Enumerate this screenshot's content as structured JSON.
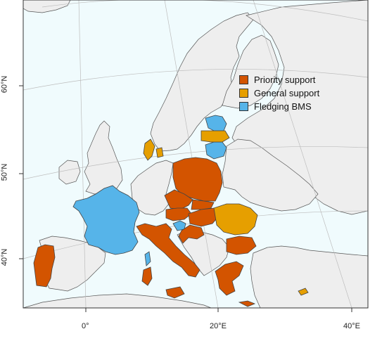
{
  "map": {
    "colors": {
      "sea": "#f0fbfd",
      "land": "#eeeeee",
      "border": "#555555",
      "graticule": "#bdbdbd",
      "frame": "#333333"
    },
    "legend": [
      {
        "label": "Priority support",
        "color": "#d35400"
      },
      {
        "label": "General support",
        "color": "#e69f00"
      },
      {
        "label": "Fledging BMS",
        "color": "#56b4e9"
      }
    ],
    "axes": {
      "x_ticks": [
        "0°",
        "20°E",
        "40°E"
      ],
      "y_ticks": [
        "40°N",
        "50°N",
        "60°N"
      ]
    },
    "countries": [
      {
        "name": "France",
        "category": "Fledging BMS"
      },
      {
        "name": "Portugal",
        "category": "Priority support"
      },
      {
        "name": "Italy",
        "category": "Priority support"
      },
      {
        "name": "Poland",
        "category": "Priority support"
      },
      {
        "name": "Czechia",
        "category": "Priority support"
      },
      {
        "name": "Austria",
        "category": "Priority support"
      },
      {
        "name": "Slovakia",
        "category": "Priority support"
      },
      {
        "name": "Hungary",
        "category": "Priority support"
      },
      {
        "name": "Croatia",
        "category": "Priority support"
      },
      {
        "name": "Bulgaria",
        "category": "Priority support"
      },
      {
        "name": "Greece",
        "category": "Priority support"
      },
      {
        "name": "Cyprus",
        "category": "General support"
      },
      {
        "name": "Romania",
        "category": "General support"
      },
      {
        "name": "Denmark",
        "category": "General support"
      },
      {
        "name": "Latvia",
        "category": "General support"
      },
      {
        "name": "Estonia",
        "category": "Fledging BMS"
      },
      {
        "name": "Lithuania",
        "category": "Fledging BMS"
      },
      {
        "name": "Slovenia",
        "category": "Fledging BMS"
      },
      {
        "name": "Corsica",
        "category": "Fledging BMS"
      },
      {
        "name": "Sardinia",
        "category": "Priority support"
      },
      {
        "name": "Sicily",
        "category": "Priority support"
      }
    ]
  }
}
